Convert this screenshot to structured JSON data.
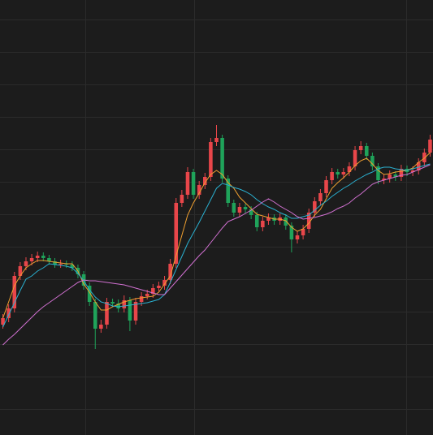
{
  "chart_data": {
    "type": "candlestick",
    "ylim": [
      0,
      53.6
    ],
    "up_color": "#e8464a",
    "down_color": "#1fa35a",
    "open": [
      13.6,
      14.4,
      15.6,
      19.6,
      20.8,
      21.4,
      21.8,
      22.1,
      21.8,
      21.4,
      21.0,
      21.1,
      21.0,
      20.6,
      19.8,
      18.4,
      16.4,
      13.1,
      13.6,
      16.4,
      16.2,
      15.6,
      16.6,
      14.1,
      16.4,
      17.1,
      17.4,
      18.1,
      18.4,
      19.1,
      21.1,
      28.6,
      29.6,
      32.4,
      29.6,
      30.8,
      31.8,
      36.1,
      36.6,
      31.6,
      28.6,
      27.4,
      28.1,
      27.8,
      27.1,
      25.6,
      26.4,
      26.8,
      26.4,
      26.8,
      25.8,
      24.1,
      24.6,
      25.4,
      27.4,
      28.8,
      29.8,
      31.4,
      32.4,
      32.1,
      32.4,
      33.1,
      35.1,
      35.6,
      34.4,
      33.1,
      31.4,
      31.6,
      32.1,
      31.8,
      32.8,
      32.4,
      32.6,
      33.6,
      34.8
    ],
    "high": [
      14.9,
      16.1,
      20.1,
      21.3,
      21.9,
      22.3,
      22.6,
      22.5,
      22.2,
      21.8,
      21.6,
      21.5,
      21.4,
      21.0,
      20.2,
      18.8,
      16.8,
      14.2,
      16.9,
      16.8,
      16.7,
      17.2,
      17.0,
      16.9,
      17.6,
      17.9,
      18.6,
      18.9,
      19.6,
      21.7,
      29.2,
      30.2,
      33.0,
      32.8,
      31.3,
      32.3,
      36.6,
      38.2,
      37.0,
      32.0,
      29.0,
      28.6,
      28.5,
      28.2,
      27.5,
      26.9,
      27.3,
      27.2,
      27.3,
      27.2,
      26.2,
      25.1,
      25.9,
      27.9,
      29.3,
      30.3,
      31.9,
      32.9,
      32.8,
      32.9,
      33.6,
      35.6,
      36.2,
      36.0,
      34.8,
      33.5,
      32.1,
      32.6,
      32.5,
      33.3,
      33.2,
      33.1,
      34.1,
      35.3,
      37.0
    ],
    "low": [
      13.1,
      13.9,
      15.1,
      19.1,
      20.3,
      20.9,
      21.3,
      21.4,
      21.0,
      20.6,
      20.6,
      20.6,
      20.2,
      19.3,
      17.9,
      15.9,
      10.6,
      12.6,
      13.1,
      15.8,
      15.1,
      15.1,
      12.8,
      13.6,
      15.9,
      16.7,
      16.9,
      17.7,
      17.9,
      18.6,
      20.6,
      28.1,
      29.1,
      29.1,
      29.1,
      30.3,
      31.3,
      35.6,
      31.1,
      28.1,
      26.9,
      26.9,
      27.3,
      26.6,
      25.1,
      25.1,
      25.9,
      25.9,
      25.9,
      25.3,
      22.5,
      23.6,
      24.1,
      24.9,
      26.9,
      28.3,
      29.3,
      30.9,
      31.6,
      31.6,
      31.9,
      32.6,
      34.6,
      33.9,
      32.6,
      30.9,
      30.9,
      31.1,
      31.3,
      31.3,
      31.9,
      31.9,
      32.1,
      33.1,
      34.3
    ],
    "close": [
      14.4,
      15.6,
      19.6,
      20.8,
      21.4,
      21.8,
      22.1,
      21.8,
      21.4,
      21.0,
      21.1,
      21.0,
      20.6,
      19.8,
      18.4,
      16.4,
      13.1,
      13.6,
      16.4,
      16.2,
      15.6,
      16.6,
      14.1,
      16.4,
      17.1,
      17.4,
      18.1,
      18.4,
      19.1,
      21.1,
      28.6,
      29.6,
      32.4,
      29.6,
      30.8,
      31.8,
      36.1,
      36.6,
      31.6,
      28.6,
      27.4,
      28.1,
      27.8,
      27.1,
      25.6,
      26.4,
      26.8,
      26.4,
      26.8,
      25.8,
      24.1,
      24.6,
      25.4,
      27.4,
      28.8,
      29.8,
      31.4,
      32.4,
      32.1,
      32.4,
      33.1,
      35.1,
      35.6,
      34.4,
      33.1,
      31.4,
      31.6,
      32.1,
      31.8,
      32.8,
      32.4,
      32.6,
      33.6,
      34.8,
      36.4
    ],
    "series": [
      {
        "color": "#f0a030",
        "values": [
          14.4,
          16.4,
          18.4,
          19.6,
          20.6,
          21.1,
          21.5,
          21.5,
          21.4,
          21.3,
          21.2,
          21.1,
          21.1,
          20.2,
          18.6,
          17.6,
          16.4,
          15.4,
          15.4,
          15.8,
          16.1,
          16.4,
          16.6,
          16.8,
          16.9,
          17.0,
          17.1,
          17.6,
          18.6,
          19.6,
          22.1,
          24.6,
          27.1,
          28.6,
          29.8,
          31.1,
          32.1,
          32.6,
          32.1,
          31.1,
          30.4,
          29.3,
          28.6,
          27.9,
          27.2,
          27.0,
          26.8,
          26.6,
          26.6,
          26.4,
          25.6,
          25.1,
          25.4,
          26.1,
          27.1,
          27.8,
          29.1,
          30.4,
          31.1,
          31.7,
          32.4,
          33.2,
          33.8,
          34.1,
          33.4,
          32.6,
          32.1,
          32.2,
          32.4,
          32.5,
          32.6,
          32.9,
          33.6,
          34.1,
          34.8
        ]
      },
      {
        "color": "#2ab0d0",
        "values": [
          13.3,
          14.8,
          16.3,
          17.8,
          19.2,
          19.6,
          20.2,
          20.6,
          21.1,
          21.0,
          20.9,
          20.8,
          20.6,
          19.9,
          19.0,
          17.9,
          17.0,
          16.4,
          16.2,
          15.9,
          15.8,
          15.9,
          16.0,
          16.1,
          16.2,
          16.3,
          16.5,
          16.7,
          17.3,
          18.8,
          20.4,
          22.0,
          23.6,
          24.9,
          26.2,
          27.6,
          29.0,
          30.4,
          31.0,
          30.8,
          30.5,
          30.3,
          30.0,
          29.6,
          29.0,
          28.5,
          28.1,
          27.8,
          27.4,
          27.1,
          26.7,
          26.7,
          26.9,
          27.1,
          27.7,
          28.3,
          28.8,
          29.4,
          29.9,
          30.4,
          30.8,
          31.3,
          31.7,
          32.1,
          32.4,
          32.8,
          33.0,
          33.0,
          32.8,
          32.7,
          32.6,
          32.8,
          33.0,
          33.2,
          33.4
        ]
      },
      {
        "color": "#d070d0",
        "values": [
          11.1,
          11.8,
          12.4,
          13.1,
          13.8,
          14.5,
          15.2,
          15.8,
          16.3,
          16.8,
          17.3,
          17.8,
          18.3,
          18.8,
          19.1,
          19.0,
          19.0,
          18.9,
          18.8,
          18.7,
          18.6,
          18.5,
          18.3,
          18.1,
          17.9,
          17.7,
          17.5,
          17.3,
          17.3,
          18.1,
          18.9,
          19.7,
          20.5,
          21.3,
          22.1,
          22.8,
          23.7,
          24.6,
          25.5,
          26.3,
          26.6,
          26.9,
          27.3,
          27.7,
          28.2,
          28.7,
          29.1,
          28.7,
          28.2,
          27.8,
          27.4,
          26.9,
          26.6,
          26.7,
          26.8,
          27.0,
          27.2,
          27.5,
          27.9,
          28.2,
          28.6,
          29.2,
          29.7,
          30.3,
          30.9,
          31.2,
          31.4,
          31.6,
          31.8,
          32.0,
          32.1,
          32.4,
          32.7,
          33.0,
          33.3
        ]
      }
    ]
  }
}
